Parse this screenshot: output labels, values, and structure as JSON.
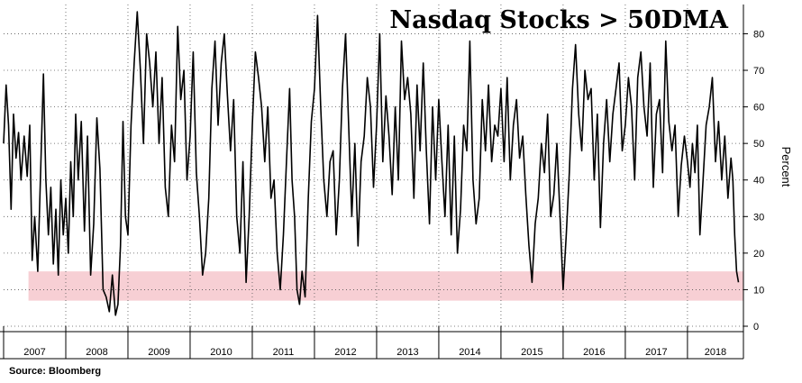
{
  "chart_data": {
    "type": "line",
    "title": "Nasdaq Stocks > 50DMA",
    "ylabel": "Percent",
    "source": "Source: Bloomberg",
    "ylim": [
      0,
      88
    ],
    "yticks": [
      0,
      10,
      20,
      30,
      40,
      50,
      60,
      70,
      80
    ],
    "years": [
      "2007",
      "2008",
      "2009",
      "2010",
      "2011",
      "2012",
      "2013",
      "2014",
      "2015",
      "2016",
      "2017",
      "2018"
    ],
    "grid": "dotted",
    "band": {
      "from": 7,
      "to": 15,
      "color": "#f7cfd4"
    },
    "line_color": "#000000",
    "series": [
      {
        "x": [
          2007.0,
          2007.04,
          2007.08,
          2007.12,
          2007.16,
          2007.2,
          2007.24,
          2007.28,
          2007.33,
          2007.38,
          2007.42,
          2007.46,
          2007.5,
          2007.55,
          2007.6,
          2007.64,
          2007.68,
          2007.72,
          2007.76,
          2007.8,
          2007.84,
          2007.88,
          2007.92,
          2007.96,
          2008.0,
          2008.04,
          2008.08,
          2008.12,
          2008.16,
          2008.2,
          2008.25,
          2008.3,
          2008.35,
          2008.4,
          2008.45,
          2008.5,
          2008.55,
          2008.6,
          2008.65,
          2008.7,
          2008.75,
          2008.8,
          2008.84,
          2008.88,
          2008.92,
          2008.96,
          2009.0,
          2009.05,
          2009.1,
          2009.15,
          2009.2,
          2009.25,
          2009.3,
          2009.35,
          2009.4,
          2009.45,
          2009.5,
          2009.55,
          2009.6,
          2009.65,
          2009.7,
          2009.75,
          2009.8,
          2009.85,
          2009.9,
          2009.95,
          2010.0,
          2010.05,
          2010.1,
          2010.15,
          2010.2,
          2010.25,
          2010.3,
          2010.35,
          2010.4,
          2010.45,
          2010.5,
          2010.55,
          2010.6,
          2010.65,
          2010.7,
          2010.75,
          2010.8,
          2010.85,
          2010.9,
          2010.95,
          2011.0,
          2011.05,
          2011.1,
          2011.15,
          2011.2,
          2011.25,
          2011.3,
          2011.35,
          2011.4,
          2011.45,
          2011.5,
          2011.55,
          2011.6,
          2011.64,
          2011.68,
          2011.72,
          2011.76,
          2011.8,
          2011.85,
          2011.9,
          2011.95,
          2012.0,
          2012.05,
          2012.1,
          2012.15,
          2012.2,
          2012.25,
          2012.3,
          2012.35,
          2012.4,
          2012.45,
          2012.5,
          2012.55,
          2012.6,
          2012.65,
          2012.7,
          2012.75,
          2012.8,
          2012.85,
          2012.9,
          2012.95,
          2013.0,
          2013.05,
          2013.1,
          2013.15,
          2013.2,
          2013.25,
          2013.3,
          2013.35,
          2013.4,
          2013.45,
          2013.5,
          2013.55,
          2013.6,
          2013.65,
          2013.7,
          2013.75,
          2013.8,
          2013.85,
          2013.9,
          2013.95,
          2014.0,
          2014.05,
          2014.1,
          2014.15,
          2014.2,
          2014.25,
          2014.3,
          2014.35,
          2014.4,
          2014.45,
          2014.5,
          2014.55,
          2014.6,
          2014.65,
          2014.7,
          2014.75,
          2014.8,
          2014.85,
          2014.9,
          2014.95,
          2015.0,
          2015.05,
          2015.1,
          2015.15,
          2015.2,
          2015.25,
          2015.3,
          2015.35,
          2015.4,
          2015.45,
          2015.5,
          2015.55,
          2015.6,
          2015.65,
          2015.7,
          2015.75,
          2015.8,
          2015.85,
          2015.9,
          2015.95,
          2016.0,
          2016.05,
          2016.1,
          2016.15,
          2016.2,
          2016.25,
          2016.3,
          2016.35,
          2016.4,
          2016.45,
          2016.5,
          2016.55,
          2016.6,
          2016.65,
          2016.7,
          2016.75,
          2016.8,
          2016.85,
          2016.9,
          2016.95,
          2017.0,
          2017.05,
          2017.1,
          2017.15,
          2017.2,
          2017.25,
          2017.3,
          2017.35,
          2017.4,
          2017.45,
          2017.5,
          2017.55,
          2017.6,
          2017.65,
          2017.7,
          2017.75,
          2017.8,
          2017.85,
          2017.9,
          2017.95,
          2018.0,
          2018.04,
          2018.08,
          2018.12,
          2018.16,
          2018.2,
          2018.25,
          2018.3,
          2018.35,
          2018.4,
          2018.45,
          2018.5,
          2018.55,
          2018.6,
          2018.65,
          2018.7,
          2018.73,
          2018.76,
          2018.79,
          2018.82
        ],
        "y": [
          50,
          66,
          55,
          32,
          58,
          46,
          53,
          40,
          52,
          41,
          55,
          18,
          30,
          15,
          45,
          69,
          40,
          25,
          38,
          17,
          32,
          14,
          40,
          25,
          35,
          20,
          45,
          30,
          58,
          40,
          56,
          26,
          52,
          14,
          28,
          57,
          43,
          10,
          8,
          4,
          14,
          3,
          6,
          22,
          56,
          30,
          25,
          55,
          72,
          86,
          70,
          50,
          80,
          72,
          60,
          75,
          50,
          68,
          38,
          30,
          55,
          45,
          82,
          62,
          70,
          40,
          52,
          75,
          42,
          30,
          14,
          20,
          35,
          65,
          78,
          55,
          72,
          80,
          63,
          48,
          62,
          30,
          20,
          45,
          12,
          30,
          55,
          75,
          68,
          60,
          45,
          60,
          35,
          40,
          20,
          10,
          25,
          45,
          65,
          40,
          30,
          10,
          6,
          15,
          8,
          35,
          56,
          65,
          85,
          60,
          40,
          30,
          45,
          48,
          25,
          40,
          65,
          80,
          55,
          30,
          50,
          22,
          45,
          52,
          68,
          60,
          38,
          55,
          80,
          45,
          63,
          52,
          36,
          60,
          40,
          78,
          62,
          68,
          58,
          35,
          66,
          48,
          72,
          48,
          28,
          60,
          40,
          62,
          45,
          30,
          55,
          25,
          52,
          20,
          32,
          55,
          48,
          78,
          40,
          28,
          35,
          62,
          48,
          66,
          45,
          55,
          52,
          65,
          45,
          68,
          40,
          55,
          62,
          46,
          52,
          36,
          22,
          12,
          28,
          35,
          50,
          42,
          58,
          30,
          36,
          50,
          30,
          10,
          25,
          42,
          65,
          77,
          58,
          48,
          70,
          62,
          65,
          40,
          58,
          27,
          50,
          62,
          45,
          58,
          65,
          72,
          48,
          55,
          68,
          60,
          40,
          68,
          75,
          60,
          52,
          72,
          38,
          58,
          62,
          42,
          78,
          56,
          48,
          55,
          30,
          44,
          52,
          45,
          38,
          50,
          42,
          55,
          25,
          40,
          55,
          60,
          68,
          45,
          56,
          40,
          52,
          35,
          46,
          40,
          25,
          15,
          12
        ]
      }
    ]
  }
}
